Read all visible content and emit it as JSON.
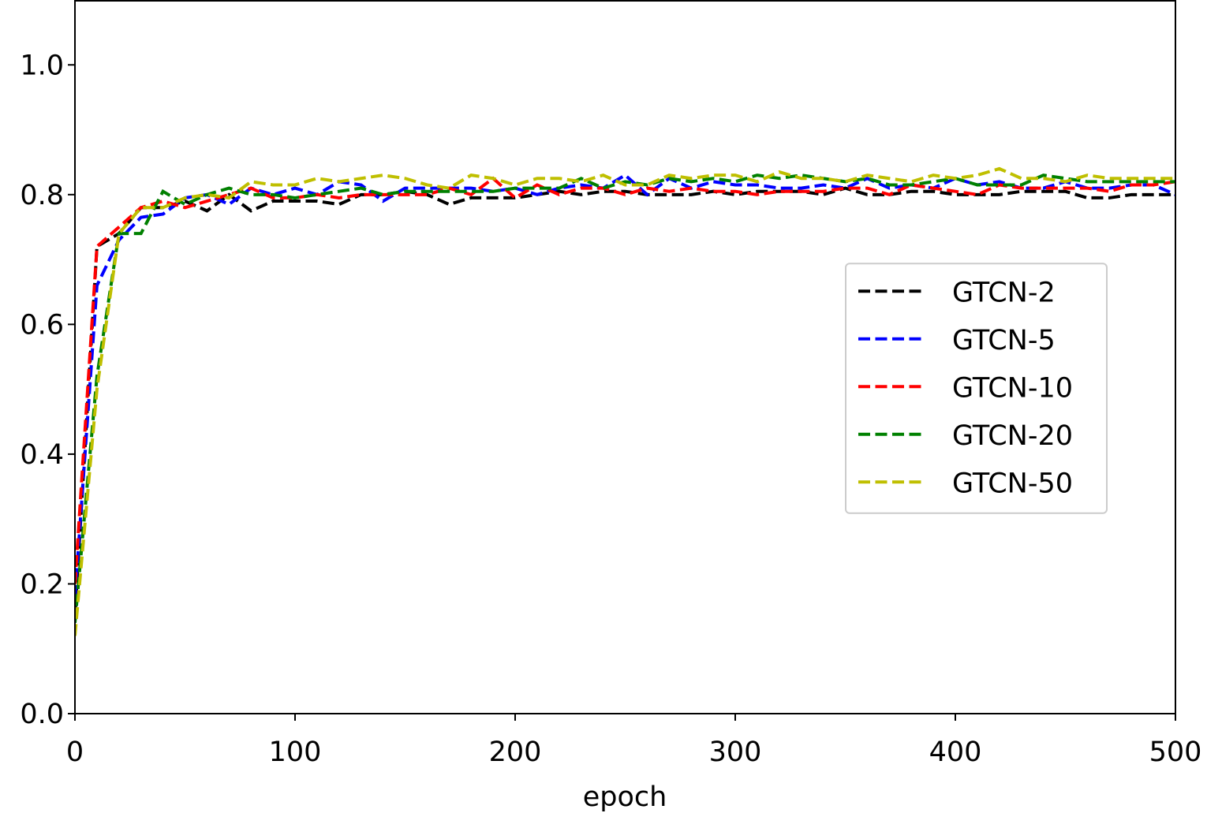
{
  "chart_data": {
    "type": "line",
    "xlabel": "epoch",
    "x": [
      0,
      10,
      20,
      30,
      40,
      50,
      60,
      70,
      80,
      90,
      100,
      110,
      120,
      130,
      140,
      150,
      160,
      170,
      180,
      190,
      200,
      210,
      220,
      230,
      240,
      250,
      260,
      270,
      280,
      290,
      300,
      310,
      320,
      330,
      340,
      350,
      360,
      370,
      380,
      390,
      400,
      410,
      420,
      430,
      440,
      450,
      460,
      470,
      480,
      490,
      500
    ],
    "series": [
      {
        "name": "GTCN-2",
        "color": "#000000",
        "values": [
          0.15,
          0.72,
          0.74,
          0.78,
          0.78,
          0.79,
          0.775,
          0.8,
          0.775,
          0.79,
          0.79,
          0.79,
          0.785,
          0.8,
          0.8,
          0.805,
          0.8,
          0.785,
          0.795,
          0.795,
          0.795,
          0.8,
          0.805,
          0.8,
          0.805,
          0.805,
          0.8,
          0.8,
          0.8,
          0.805,
          0.8,
          0.805,
          0.805,
          0.805,
          0.8,
          0.81,
          0.8,
          0.8,
          0.805,
          0.805,
          0.8,
          0.8,
          0.8,
          0.805,
          0.805,
          0.805,
          0.795,
          0.795,
          0.8,
          0.8,
          0.8
        ]
      },
      {
        "name": "GTCN-5",
        "color": "#0000ff",
        "values": [
          0.18,
          0.66,
          0.73,
          0.765,
          0.77,
          0.795,
          0.8,
          0.785,
          0.81,
          0.8,
          0.81,
          0.8,
          0.82,
          0.815,
          0.79,
          0.81,
          0.81,
          0.81,
          0.81,
          0.805,
          0.81,
          0.8,
          0.81,
          0.815,
          0.81,
          0.83,
          0.8,
          0.825,
          0.81,
          0.82,
          0.815,
          0.815,
          0.81,
          0.81,
          0.815,
          0.81,
          0.825,
          0.81,
          0.815,
          0.81,
          0.825,
          0.815,
          0.82,
          0.81,
          0.81,
          0.82,
          0.81,
          0.81,
          0.815,
          0.815,
          0.8
        ]
      },
      {
        "name": "GTCN-10",
        "color": "#ff0000",
        "values": [
          0.2,
          0.72,
          0.75,
          0.78,
          0.79,
          0.78,
          0.79,
          0.8,
          0.81,
          0.795,
          0.795,
          0.8,
          0.795,
          0.8,
          0.8,
          0.8,
          0.8,
          0.81,
          0.8,
          0.825,
          0.795,
          0.815,
          0.8,
          0.81,
          0.81,
          0.8,
          0.81,
          0.805,
          0.81,
          0.805,
          0.805,
          0.8,
          0.805,
          0.805,
          0.805,
          0.81,
          0.81,
          0.8,
          0.815,
          0.81,
          0.805,
          0.8,
          0.815,
          0.81,
          0.81,
          0.81,
          0.81,
          0.805,
          0.815,
          0.815,
          0.82
        ]
      },
      {
        "name": "GTCN-20",
        "color": "#008000",
        "values": [
          0.14,
          0.52,
          0.74,
          0.74,
          0.805,
          0.785,
          0.8,
          0.81,
          0.8,
          0.8,
          0.795,
          0.8,
          0.805,
          0.81,
          0.8,
          0.805,
          0.805,
          0.805,
          0.805,
          0.805,
          0.81,
          0.81,
          0.81,
          0.825,
          0.81,
          0.82,
          0.815,
          0.825,
          0.82,
          0.825,
          0.82,
          0.83,
          0.825,
          0.83,
          0.825,
          0.82,
          0.825,
          0.815,
          0.815,
          0.82,
          0.825,
          0.815,
          0.815,
          0.815,
          0.83,
          0.825,
          0.82,
          0.82,
          0.82,
          0.82,
          0.82
        ]
      },
      {
        "name": "GTCN-50",
        "color": "#bfbf00",
        "values": [
          0.12,
          0.5,
          0.74,
          0.78,
          0.78,
          0.795,
          0.8,
          0.795,
          0.82,
          0.815,
          0.815,
          0.825,
          0.82,
          0.825,
          0.83,
          0.825,
          0.815,
          0.81,
          0.83,
          0.825,
          0.815,
          0.825,
          0.825,
          0.82,
          0.83,
          0.815,
          0.815,
          0.83,
          0.825,
          0.83,
          0.83,
          0.82,
          0.835,
          0.825,
          0.825,
          0.82,
          0.83,
          0.825,
          0.82,
          0.83,
          0.825,
          0.83,
          0.84,
          0.825,
          0.825,
          0.82,
          0.83,
          0.825,
          0.825,
          0.825,
          0.825
        ]
      }
    ],
    "xlim": [
      0,
      500
    ],
    "ylim": [
      0,
      1.1
    ],
    "xticks": [
      0,
      100,
      200,
      300,
      400,
      500
    ],
    "yticks": [
      {
        "value": 0,
        "label": "0.0"
      },
      0.2,
      0.4,
      0.6,
      0.8,
      {
        "value": 1,
        "label": "1.0"
      }
    ],
    "grid": false,
    "legend": "center right"
  }
}
